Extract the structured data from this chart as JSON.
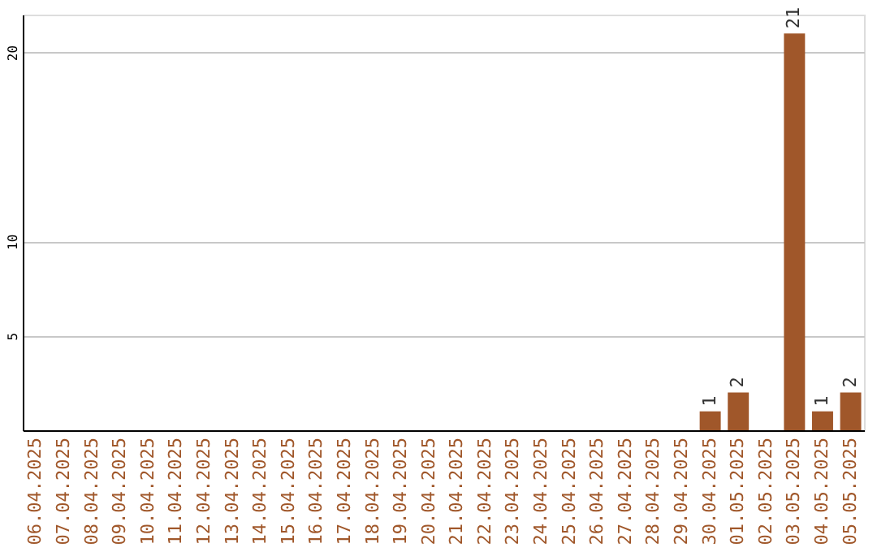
{
  "chart_data": {
    "type": "bar",
    "categories": [
      "06.04.2025",
      "07.04.2025",
      "08.04.2025",
      "09.04.2025",
      "10.04.2025",
      "11.04.2025",
      "12.04.2025",
      "13.04.2025",
      "14.04.2025",
      "15.04.2025",
      "16.04.2025",
      "17.04.2025",
      "18.04.2025",
      "19.04.2025",
      "20.04.2025",
      "21.04.2025",
      "22.04.2025",
      "23.04.2025",
      "24.04.2025",
      "25.04.2025",
      "26.04.2025",
      "27.04.2025",
      "28.04.2025",
      "29.04.2025",
      "30.04.2025",
      "01.05.2025",
      "02.05.2025",
      "03.05.2025",
      "04.05.2025",
      "05.05.2025"
    ],
    "values": [
      0,
      0,
      0,
      0,
      0,
      0,
      0,
      0,
      0,
      0,
      0,
      0,
      0,
      0,
      0,
      0,
      0,
      0,
      0,
      0,
      0,
      0,
      0,
      0,
      1,
      2,
      0,
      21,
      1,
      2
    ],
    "value_labels": [
      null,
      null,
      null,
      null,
      null,
      null,
      null,
      null,
      null,
      null,
      null,
      null,
      null,
      null,
      null,
      null,
      null,
      null,
      null,
      null,
      null,
      null,
      null,
      null,
      "1",
      "2",
      null,
      "21",
      "1",
      "2"
    ],
    "color": "#a0572a",
    "ylim": [
      0,
      22
    ],
    "yticks": [
      5,
      10,
      20
    ],
    "grid": "y"
  }
}
